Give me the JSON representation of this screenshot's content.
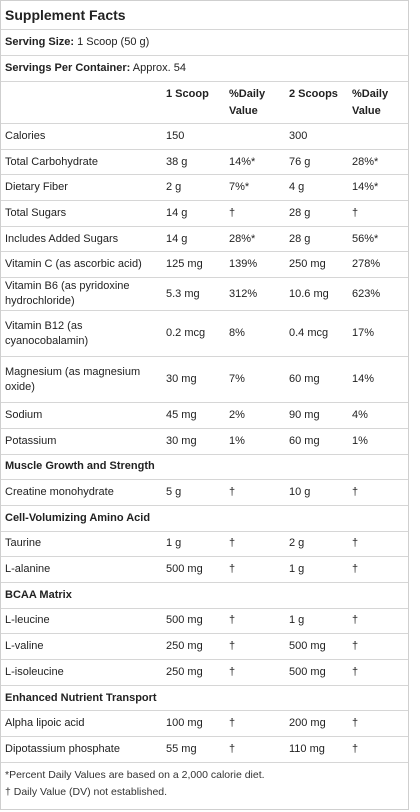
{
  "title": "Supplement Facts",
  "serving_size": {
    "label": "Serving Size:",
    "value": " 1 Scoop (50 g)"
  },
  "servings_per_container": {
    "label": "Servings Per Container:",
    "value": " Approx. 54"
  },
  "columns": [
    "",
    "1 Scoop",
    "%Daily Value",
    "2 Scoops",
    "%Daily Value"
  ],
  "rows": [
    {
      "type": "item",
      "h": "h25",
      "name": "Calories",
      "s1": "150",
      "dv1": "",
      "s2": "300",
      "dv2": ""
    },
    {
      "type": "item",
      "h": "h25",
      "name": "Total Carbohydrate",
      "s1": "38 g",
      "dv1": "14%*",
      "s2": "76 g",
      "dv2": "28%*"
    },
    {
      "type": "item",
      "h": "h25",
      "name": "Dietary Fiber",
      "s1": "2 g",
      "dv1": "7%*",
      "s2": "4 g",
      "dv2": "14%*"
    },
    {
      "type": "item",
      "h": "h25",
      "name": "Total Sugars",
      "s1": "14 g",
      "dv1": "†",
      "s2": "28 g",
      "dv2": "†"
    },
    {
      "type": "item",
      "h": "h25",
      "name": "Includes Added Sugars",
      "s1": "14 g",
      "dv1": "28%*",
      "s2": "28 g",
      "dv2": "56%*"
    },
    {
      "type": "item",
      "h": "h25",
      "name": "Vitamin C (as ascorbic acid)",
      "s1": "125 mg",
      "dv1": "139%",
      "s2": "250 mg",
      "dv2": "278%"
    },
    {
      "type": "item",
      "h": "h33",
      "name": "Vitamin B6 (as pyridoxine hydrochloride)",
      "s1": "5.3 mg",
      "dv1": "312%",
      "s2": "10.6 mg",
      "dv2": "623%"
    },
    {
      "type": "item",
      "h": "h46",
      "name": "Vitamin B12 (as cyanocobalamin)",
      "s1": "0.2 mcg",
      "dv1": "8%",
      "s2": "0.4 mcg",
      "dv2": "17%"
    },
    {
      "type": "item",
      "h": "h46",
      "name": "Magnesium (as magnesium oxide)",
      "s1": "30 mg",
      "dv1": "7%",
      "s2": "60 mg",
      "dv2": "14%"
    },
    {
      "type": "item",
      "h": "h25",
      "name": "Sodium",
      "s1": "45 mg",
      "dv1": "2%",
      "s2": "90 mg",
      "dv2": "4%"
    },
    {
      "type": "item",
      "h": "h25",
      "name": "Potassium",
      "s1": "30 mg",
      "dv1": "1%",
      "s2": "60 mg",
      "dv2": "1%"
    },
    {
      "type": "section",
      "h": "h25",
      "name": "Muscle Growth and Strength"
    },
    {
      "type": "item",
      "h": "h25",
      "name": "Creatine monohydrate",
      "s1": "5 g",
      "dv1": "†",
      "s2": "10 g",
      "dv2": "†"
    },
    {
      "type": "section",
      "h": "h25",
      "name": "Cell-Volumizing Amino Acid"
    },
    {
      "type": "item",
      "h": "h25",
      "name": "Taurine",
      "s1": "1 g",
      "dv1": "†",
      "s2": "2 g",
      "dv2": "†"
    },
    {
      "type": "item",
      "h": "h25",
      "name": "L-alanine",
      "s1": "500 mg",
      "dv1": "†",
      "s2": "1 g",
      "dv2": "†"
    },
    {
      "type": "section",
      "h": "h25",
      "name": "BCAA Matrix"
    },
    {
      "type": "item",
      "h": "h25",
      "name": "L-leucine",
      "s1": "500 mg",
      "dv1": "†",
      "s2": "1 g",
      "dv2": "†"
    },
    {
      "type": "item",
      "h": "h25",
      "name": "L-valine",
      "s1": "250 mg",
      "dv1": "†",
      "s2": "500 mg",
      "dv2": "†"
    },
    {
      "type": "item",
      "h": "h25",
      "name": "L-isoleucine",
      "s1": "250 mg",
      "dv1": "†",
      "s2": "500 mg",
      "dv2": "†"
    },
    {
      "type": "section",
      "h": "h25",
      "name": "Enhanced Nutrient Transport"
    },
    {
      "type": "item",
      "h": "h25",
      "name": "Alpha lipoic acid",
      "s1": "100 mg",
      "dv1": "†",
      "s2": "200 mg",
      "dv2": "†"
    },
    {
      "type": "item",
      "h": "h25",
      "name": "Dipotassium phosphate",
      "s1": "55 mg",
      "dv1": "†",
      "s2": "110 mg",
      "dv2": "†"
    }
  ],
  "footnotes": [
    "*Percent Daily Values are based on a 2,000 calorie diet.",
    "† Daily Value (DV) not established."
  ]
}
